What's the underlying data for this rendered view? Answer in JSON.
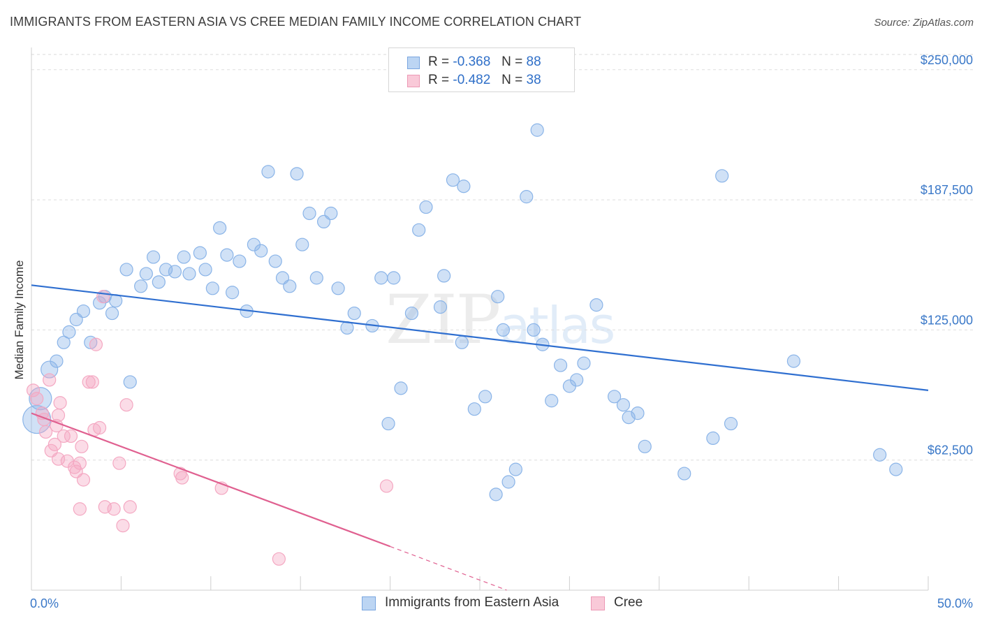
{
  "title": "IMMIGRANTS FROM EASTERN ASIA VS CREE MEDIAN FAMILY INCOME CORRELATION CHART",
  "source": "Source: ZipAtlas.com",
  "watermark": {
    "zip": "ZIP",
    "atlas": "atlas"
  },
  "legend": {
    "r_label": "R =",
    "n_label": "N =",
    "rows": [
      {
        "r": "-0.368",
        "n": "88"
      },
      {
        "r": "-0.482",
        "n": "38"
      }
    ]
  },
  "chart_data": {
    "type": "scatter",
    "ylabel": "Median Family Income",
    "x_axis": {
      "min": 0,
      "max": 50,
      "tick_labels": [
        "0.0%",
        "50.0%"
      ]
    },
    "y_axis": {
      "min": 0,
      "max": 260000,
      "ticks": [
        {
          "value": 62500,
          "label": "$62,500"
        },
        {
          "value": 125000,
          "label": "$125,000"
        },
        {
          "value": 187500,
          "label": "$187,500"
        },
        {
          "value": 250000,
          "label": "$250,000"
        }
      ]
    },
    "grid": true,
    "legend_position": "bottom-center",
    "series": [
      {
        "name": "Immigrants from Eastern Asia",
        "color": "#8ab4e8",
        "line_color": "#2f6fd0",
        "trend": {
          "x": [
            0.0,
            50.0
          ],
          "y": [
            146500,
            96000
          ]
        },
        "points": [
          [
            0.3,
            82000
          ],
          [
            0.5,
            92000
          ],
          [
            1.0,
            106000
          ],
          [
            1.4,
            110000
          ],
          [
            1.8,
            119000
          ],
          [
            2.1,
            124000
          ],
          [
            2.5,
            130000
          ],
          [
            2.9,
            134000
          ],
          [
            3.3,
            119000
          ],
          [
            3.8,
            138000
          ],
          [
            4.1,
            141000
          ],
          [
            4.5,
            133000
          ],
          [
            4.7,
            139000
          ],
          [
            5.3,
            154000
          ],
          [
            5.5,
            100000
          ],
          [
            6.1,
            146000
          ],
          [
            6.4,
            152000
          ],
          [
            6.8,
            160000
          ],
          [
            7.1,
            148000
          ],
          [
            7.5,
            154000
          ],
          [
            8.0,
            153000
          ],
          [
            8.5,
            160000
          ],
          [
            8.8,
            152000
          ],
          [
            9.4,
            162000
          ],
          [
            9.7,
            154000
          ],
          [
            10.1,
            145000
          ],
          [
            10.5,
            174000
          ],
          [
            10.9,
            161000
          ],
          [
            11.2,
            143000
          ],
          [
            11.6,
            158000
          ],
          [
            12.0,
            134000
          ],
          [
            12.4,
            166000
          ],
          [
            12.8,
            163000
          ],
          [
            13.2,
            201000
          ],
          [
            13.6,
            158000
          ],
          [
            14.0,
            150000
          ],
          [
            14.4,
            146000
          ],
          [
            14.8,
            200000
          ],
          [
            15.1,
            166000
          ],
          [
            15.5,
            181000
          ],
          [
            15.9,
            150000
          ],
          [
            16.3,
            177000
          ],
          [
            16.7,
            181000
          ],
          [
            17.1,
            145000
          ],
          [
            17.6,
            126000
          ],
          [
            18.0,
            133000
          ],
          [
            19.0,
            127000
          ],
          [
            19.5,
            150000
          ],
          [
            19.9,
            80000
          ],
          [
            20.2,
            150000
          ],
          [
            20.6,
            97000
          ],
          [
            21.2,
            133000
          ],
          [
            21.6,
            173000
          ],
          [
            22.0,
            184000
          ],
          [
            22.8,
            136000
          ],
          [
            23.0,
            151000
          ],
          [
            23.5,
            197000
          ],
          [
            24.0,
            119000
          ],
          [
            24.1,
            194000
          ],
          [
            24.7,
            87000
          ],
          [
            25.3,
            93000
          ],
          [
            26.0,
            141000
          ],
          [
            26.3,
            125000
          ],
          [
            25.9,
            46000
          ],
          [
            26.6,
            52000
          ],
          [
            27.0,
            58000
          ],
          [
            27.6,
            189000
          ],
          [
            28.0,
            125000
          ],
          [
            28.2,
            221000
          ],
          [
            28.5,
            118000
          ],
          [
            29.0,
            91000
          ],
          [
            29.5,
            108000
          ],
          [
            30.0,
            98000
          ],
          [
            30.4,
            101000
          ],
          [
            30.8,
            109000
          ],
          [
            31.5,
            137000
          ],
          [
            32.5,
            93000
          ],
          [
            33.0,
            89000
          ],
          [
            33.3,
            83000
          ],
          [
            33.8,
            85000
          ],
          [
            34.2,
            69000
          ],
          [
            36.4,
            56000
          ],
          [
            38.0,
            73000
          ],
          [
            38.5,
            199000
          ],
          [
            39.0,
            80000
          ],
          [
            42.5,
            110000
          ],
          [
            47.3,
            65000
          ],
          [
            48.2,
            58000
          ]
        ]
      },
      {
        "name": "Cree",
        "color": "#f4a8c2",
        "line_color": "#e06090",
        "trend": {
          "x": [
            0.0,
            20.0
          ],
          "y": [
            85000,
            21000
          ]
        },
        "trend_dashed": {
          "x": [
            20.0,
            26.5
          ],
          "y": [
            21000,
            0
          ]
        },
        "points": [
          [
            0.1,
            96000
          ],
          [
            0.3,
            92000
          ],
          [
            0.6,
            85000
          ],
          [
            0.7,
            82000
          ],
          [
            0.8,
            76000
          ],
          [
            1.0,
            101000
          ],
          [
            1.1,
            67000
          ],
          [
            1.3,
            70000
          ],
          [
            1.4,
            79000
          ],
          [
            1.5,
            84000
          ],
          [
            1.6,
            90000
          ],
          [
            1.8,
            74000
          ],
          [
            2.0,
            62000
          ],
          [
            2.2,
            74000
          ],
          [
            2.5,
            57000
          ],
          [
            2.7,
            61000
          ],
          [
            2.8,
            69000
          ],
          [
            2.9,
            53000
          ],
          [
            3.2,
            100000
          ],
          [
            3.4,
            100000
          ],
          [
            3.5,
            77000
          ],
          [
            3.6,
            118000
          ],
          [
            3.8,
            78000
          ],
          [
            4.0,
            141000
          ],
          [
            4.1,
            40000
          ],
          [
            4.6,
            39000
          ],
          [
            4.9,
            61000
          ],
          [
            5.1,
            31000
          ],
          [
            5.3,
            89000
          ],
          [
            5.5,
            40000
          ],
          [
            2.7,
            39000
          ],
          [
            8.3,
            56000
          ],
          [
            8.4,
            54000
          ],
          [
            10.6,
            49000
          ],
          [
            13.8,
            15000
          ],
          [
            19.8,
            50000
          ],
          [
            1.5,
            63000
          ],
          [
            2.4,
            59000
          ]
        ]
      }
    ]
  }
}
